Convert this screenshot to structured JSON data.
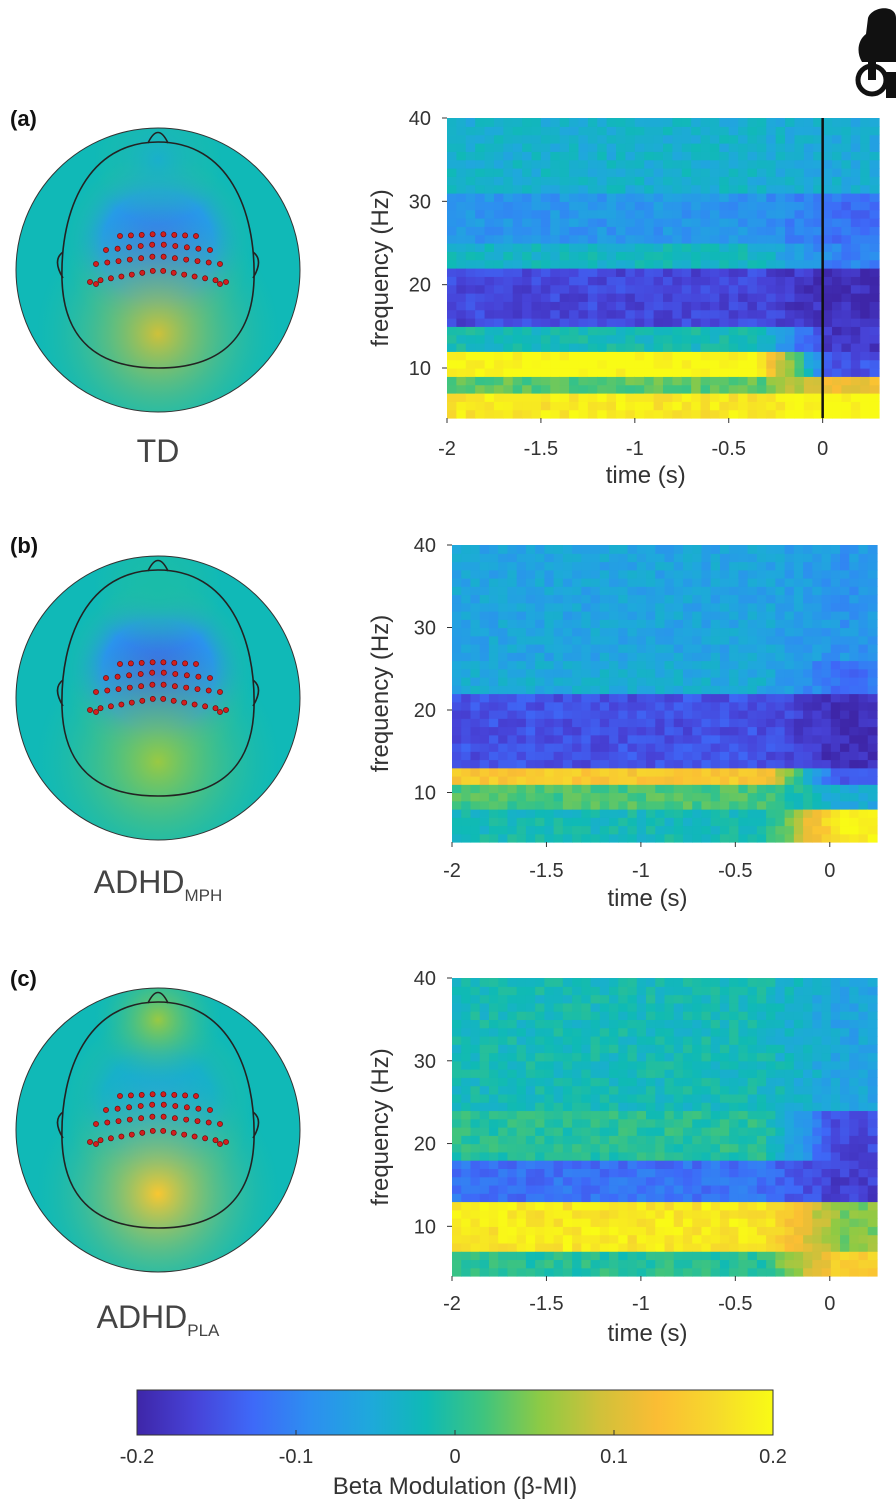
{
  "logo": {
    "icon": "hand-power-icon"
  },
  "colormap": [
    "#3e26a8",
    "#4743d8",
    "#3e69f8",
    "#2d8ff0",
    "#1fa8dc",
    "#0fbab5",
    "#3fc47e",
    "#8fca44",
    "#d0c13a",
    "#fbbd34",
    "#f6d92c",
    "#f9fb15"
  ],
  "chart_data": [
    {
      "type": "heatmap",
      "panel": "(a)",
      "group": "TD",
      "group_sub": "",
      "xlabel": "time (s)",
      "ylabel": "frequency (Hz)",
      "xlim": [
        -2,
        0.3
      ],
      "ylim": [
        4,
        40
      ],
      "xticks": [
        "-2",
        "-1.5",
        "-1",
        "-0.5",
        "0"
      ],
      "yticks": [
        "10",
        "20",
        "30",
        "40"
      ],
      "xtick_values": [
        -2,
        -1.5,
        -1,
        -0.5,
        0
      ],
      "ytick_values": [
        10,
        20,
        30,
        40
      ],
      "event_line_at": 0,
      "bands": [
        {
          "f": [
            4,
            7
          ],
          "pre": 0.18,
          "post": 0.2
        },
        {
          "f": [
            7,
            9
          ],
          "pre": 0.03,
          "post": 0.12
        },
        {
          "f": [
            9,
            12
          ],
          "pre": 0.2,
          "post": -0.15
        },
        {
          "f": [
            12,
            15
          ],
          "pre": -0.02,
          "post": -0.18
        },
        {
          "f": [
            15,
            22
          ],
          "pre": -0.16,
          "post": -0.19
        },
        {
          "f": [
            22,
            25
          ],
          "pre": -0.03,
          "post": -0.1
        },
        {
          "f": [
            25,
            31
          ],
          "pre": -0.08,
          "post": -0.12
        },
        {
          "f": [
            31,
            40
          ],
          "pre": -0.04,
          "post": -0.05
        }
      ],
      "topography": {
        "posterior": 0.09,
        "central": -0.12,
        "frontal": -0.04
      }
    },
    {
      "type": "heatmap",
      "panel": "(b)",
      "group": "ADHD",
      "group_sub": "MPH",
      "xlabel": "time (s)",
      "ylabel": "frequency (Hz)",
      "xlim": [
        -2,
        0.25
      ],
      "ylim": [
        4,
        40
      ],
      "xticks": [
        "-2",
        "-1.5",
        "-1",
        "-0.5",
        "0"
      ],
      "yticks": [
        "10",
        "20",
        "30",
        "40"
      ],
      "xtick_values": [
        -2,
        -1.5,
        -1,
        -0.5,
        0
      ],
      "ytick_values": [
        10,
        20,
        30,
        40
      ],
      "bands": [
        {
          "f": [
            4,
            8
          ],
          "pre": -0.02,
          "post": 0.19
        },
        {
          "f": [
            8,
            11
          ],
          "pre": 0.02,
          "post": -0.05
        },
        {
          "f": [
            11,
            13
          ],
          "pre": 0.14,
          "post": -0.15
        },
        {
          "f": [
            13,
            22
          ],
          "pre": -0.15,
          "post": -0.19
        },
        {
          "f": [
            22,
            26
          ],
          "pre": -0.05,
          "post": -0.12
        },
        {
          "f": [
            26,
            40
          ],
          "pre": -0.06,
          "post": -0.08
        }
      ],
      "topography": {
        "posterior": 0.06,
        "central": -0.14,
        "frontal": -0.01
      }
    },
    {
      "type": "heatmap",
      "panel": "(c)",
      "group": "ADHD",
      "group_sub": "PLA",
      "xlabel": "time (s)",
      "ylabel": "frequency (Hz)",
      "xlim": [
        -2,
        0.25
      ],
      "ylim": [
        4,
        40
      ],
      "xticks": [
        "-2",
        "-1.5",
        "-1",
        "-0.5",
        "0"
      ],
      "yticks": [
        "10",
        "20",
        "30",
        "40"
      ],
      "xtick_values": [
        -2,
        -1.5,
        -1,
        -0.5,
        0
      ],
      "ytick_values": [
        10,
        20,
        30,
        40
      ],
      "bands": [
        {
          "f": [
            4,
            7
          ],
          "pre": 0.0,
          "post": 0.15
        },
        {
          "f": [
            7,
            13
          ],
          "pre": 0.18,
          "post": 0.05
        },
        {
          "f": [
            13,
            18
          ],
          "pre": -0.12,
          "post": -0.17
        },
        {
          "f": [
            18,
            24
          ],
          "pre": 0.0,
          "post": -0.16
        },
        {
          "f": [
            24,
            40
          ],
          "pre": -0.02,
          "post": -0.06
        }
      ],
      "topography": {
        "posterior": 0.14,
        "central": -0.06,
        "frontal": 0.06
      }
    }
  ],
  "colorbar": {
    "label": "Beta Modulation (β-MI)",
    "range": [
      -0.2,
      0.2
    ],
    "ticks": [
      "-0.2",
      "-0.1",
      "0",
      "0.1",
      "0.2"
    ],
    "tick_values": [
      -0.2,
      -0.1,
      0,
      0.1,
      0.2
    ]
  }
}
